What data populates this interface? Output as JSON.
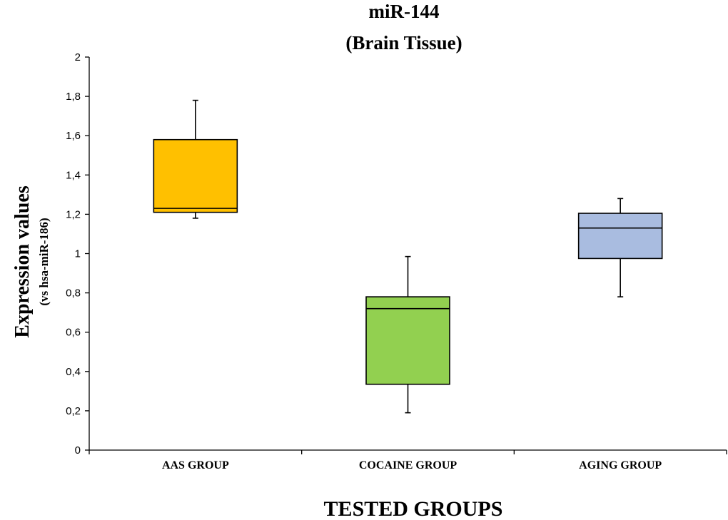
{
  "chart_data": {
    "type": "boxplot",
    "title_lines": [
      "miR-144",
      "(Brain Tissue)"
    ],
    "ylabel": "Expression values",
    "ylabel_sub": "(vs hsa-miR-186)",
    "xlabel": "TESTED GROUPS",
    "ylim": [
      0,
      2
    ],
    "yticks": [
      0,
      0.2,
      0.4,
      0.6,
      0.8,
      1,
      1.2,
      1.4,
      1.6,
      1.8,
      2
    ],
    "ytick_labels": [
      "0",
      "0,2",
      "0,4",
      "0,6",
      "0,8",
      "1",
      "1,2",
      "1,4",
      "1,6",
      "1,8",
      "2"
    ],
    "grid": false,
    "categories": [
      "AAS GROUP",
      "COCAINE GROUP",
      "AGING GROUP"
    ],
    "boxes": [
      {
        "category": "AAS GROUP",
        "min": 1.18,
        "q1": 1.21,
        "median": 1.23,
        "q3": 1.58,
        "max": 1.78,
        "color": "#FFC000"
      },
      {
        "category": "COCAINE GROUP",
        "min": 0.19,
        "q1": 0.335,
        "median": 0.72,
        "q3": 0.78,
        "max": 0.985,
        "color": "#92D050"
      },
      {
        "category": "AGING GROUP",
        "min": 0.78,
        "q1": 0.975,
        "median": 1.13,
        "q3": 1.205,
        "max": 1.28,
        "color": "#A9BCE0"
      }
    ]
  }
}
